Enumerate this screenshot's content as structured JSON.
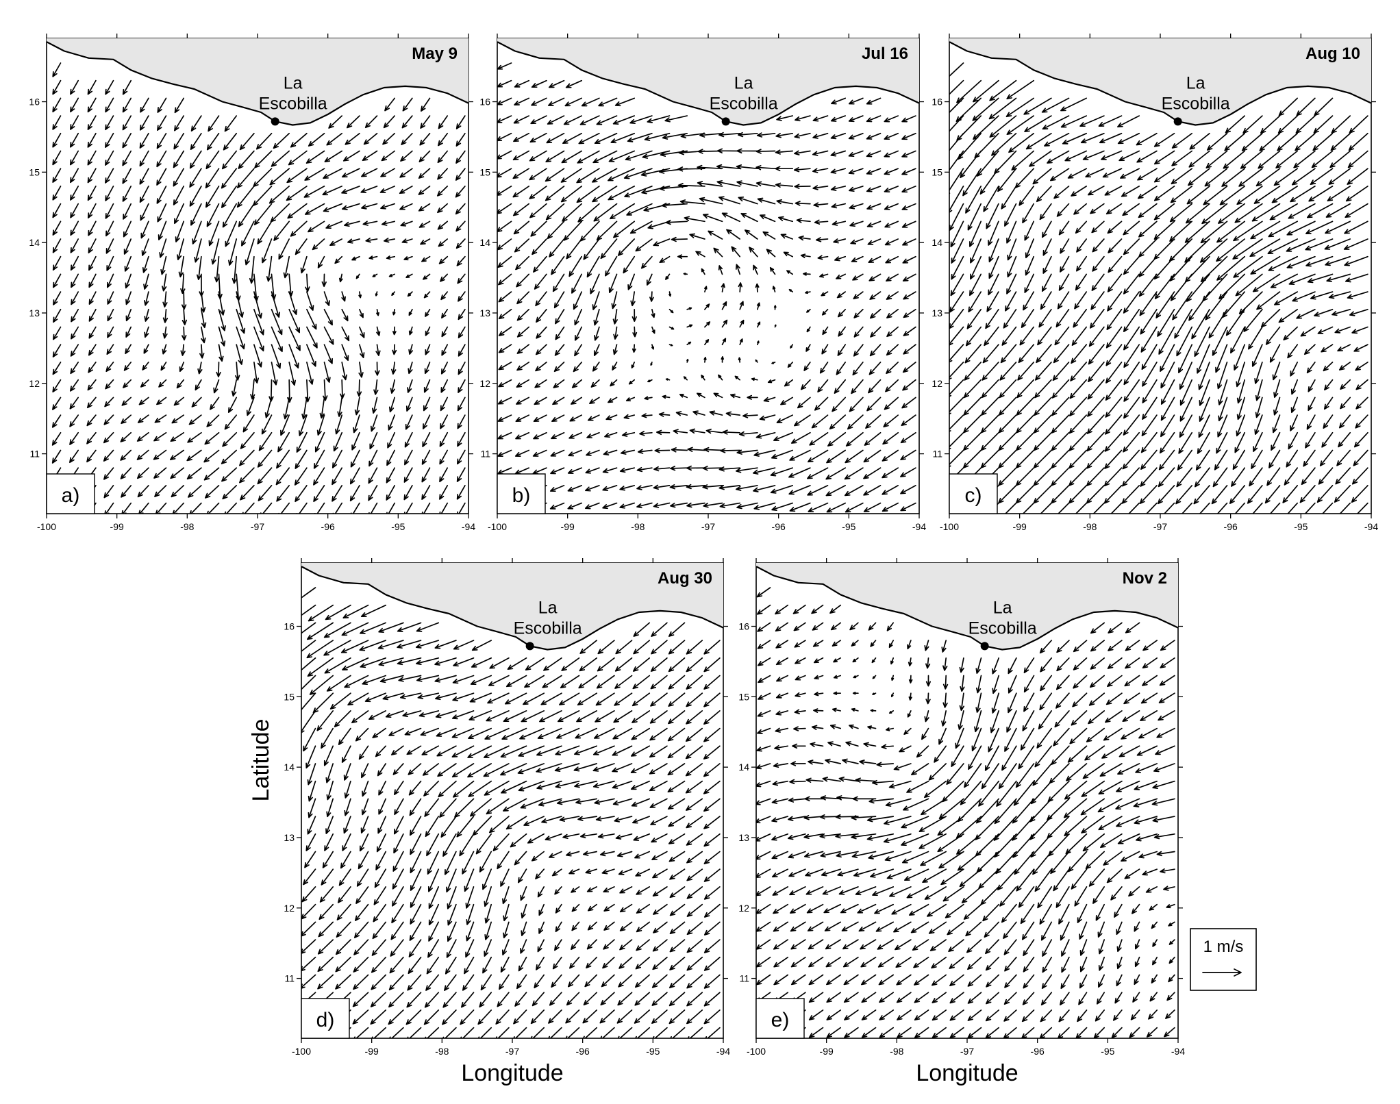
{
  "figure": {
    "axes": {
      "x_title": "Longitude",
      "y_title": "Latitude",
      "x_ticks": [
        "-100",
        "-99",
        "-98",
        "-97",
        "-96",
        "-95",
        "-94"
      ],
      "y_ticks": [
        "11",
        "12",
        "13",
        "14",
        "15",
        "16"
      ],
      "lon_range": [
        -100,
        -94
      ],
      "lat_range": [
        10.15,
        16.9
      ]
    },
    "location": {
      "name_line1": "La",
      "name_line2": "Escobilla",
      "lon": -96.75,
      "lat": 15.72
    },
    "scale": {
      "label": "1 m/s",
      "speed": 1
    },
    "panels": [
      {
        "letter": "a)",
        "date": "May 9",
        "eddies": [
          {
            "lon": -96.3,
            "lat": 13.7,
            "sense": "cyclonic",
            "strength": 0.55
          },
          {
            "lon": -97.2,
            "lat": 12.2,
            "sense": "anticyclonic",
            "strength": 0.35
          }
        ],
        "background": [
          -0.2,
          -0.35
        ],
        "flow_note": "southward jet near 97W"
      },
      {
        "letter": "b)",
        "date": "Jul 16",
        "eddies": [
          {
            "lon": -97.5,
            "lat": 13.9,
            "sense": "cyclonic",
            "strength": 0.6
          },
          {
            "lon": -96.0,
            "lat": 11.8,
            "sense": "anticyclonic",
            "strength": 0.35
          }
        ],
        "background": [
          -0.35,
          -0.15
        ],
        "flow_note": "westward coastal flow"
      },
      {
        "letter": "c)",
        "date": "Aug 10",
        "eddies": [
          {
            "lon": -98.7,
            "lat": 15.0,
            "sense": "cyclonic",
            "strength": 0.4
          },
          {
            "lon": -95.3,
            "lat": 13.0,
            "sense": "cyclonic",
            "strength": 0.5
          }
        ],
        "background": [
          -0.45,
          -0.45
        ],
        "flow_note": "southwestward jet"
      },
      {
        "letter": "d)",
        "date": "Aug 30",
        "eddies": [
          {
            "lon": -99.2,
            "lat": 14.8,
            "sense": "cyclonic",
            "strength": 0.45
          },
          {
            "lon": -96.8,
            "lat": 13.0,
            "sense": "cyclonic",
            "strength": 0.45
          }
        ],
        "background": [
          -0.4,
          -0.35
        ],
        "flow_note": "southwestward flow"
      },
      {
        "letter": "e)",
        "date": "Nov 2",
        "eddies": [
          {
            "lon": -97.6,
            "lat": 14.2,
            "sense": "anticyclonic",
            "strength": 0.55
          },
          {
            "lon": -94.6,
            "lat": 12.5,
            "sense": "cyclonic",
            "strength": 0.4
          }
        ],
        "background": [
          -0.35,
          -0.25
        ],
        "flow_note": "southwestward jet near 96W"
      }
    ]
  }
}
